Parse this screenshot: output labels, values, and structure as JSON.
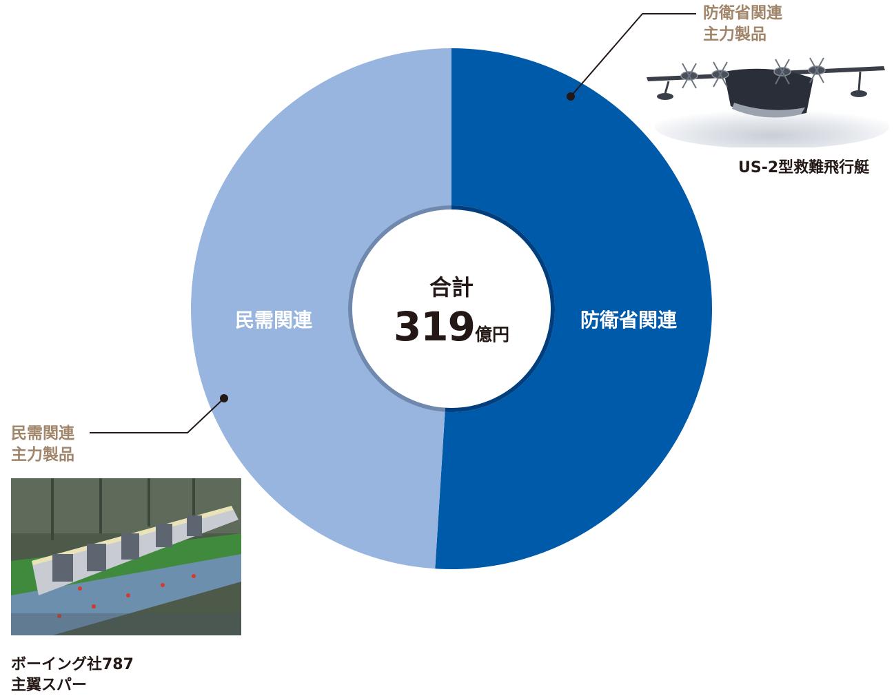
{
  "chart_data": {
    "type": "pie",
    "style": "donut",
    "total": {
      "label": "合計",
      "value": "319",
      "unit": "億円"
    },
    "categories": [
      "防衛省関連",
      "民需関連"
    ],
    "values": [
      51,
      49
    ],
    "value_unit": "percent of total (estimated from slice angles)",
    "colors": [
      "#005aaa",
      "#97b5de"
    ],
    "start": "12 o'clock, clockwise"
  },
  "callouts": {
    "defense": {
      "line1": "防衛省関連",
      "line2": "主力製品",
      "photo_caption": "US-2型救難飛行艇",
      "photo_icon": "seaplane-photo"
    },
    "civil": {
      "line1": "民需関連",
      "line2": "主力製品",
      "photo_caption_line1": "ボーイング社787",
      "photo_caption_line2": "主翼スパー",
      "photo_icon": "wing-spar-factory-photo"
    }
  },
  "colors": {
    "callout_text": "#a0856a",
    "leader_line": "#231815",
    "ring_dark": "#003e7e",
    "ring_light": "#6f88ad"
  }
}
